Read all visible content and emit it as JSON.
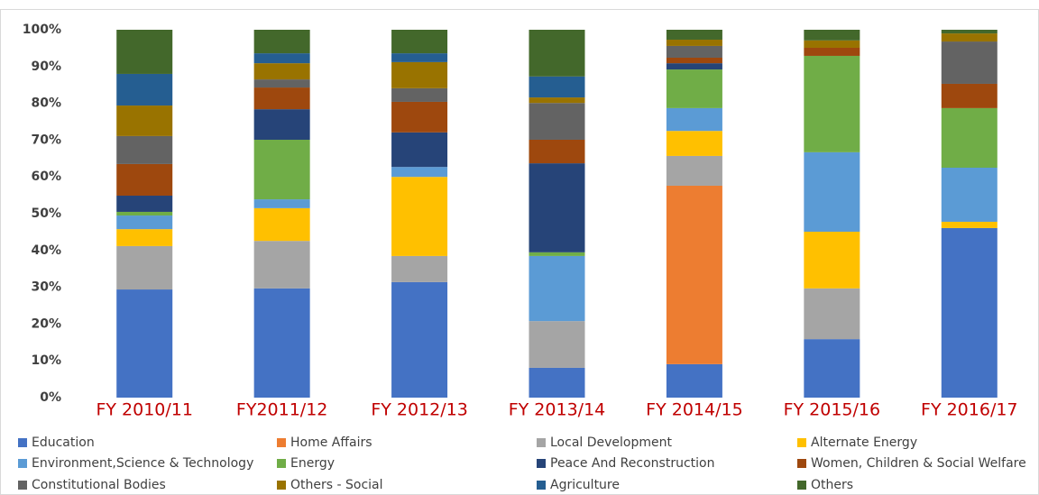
{
  "chart_data": {
    "type": "stacked_bar_100",
    "categories": [
      "FY 2010/11",
      "FY2011/12",
      "FY 2012/13",
      "FY 2013/14",
      "FY 2014/15",
      "FY 2015/16",
      "FY 2016/17"
    ],
    "series": [
      {
        "name": "Education",
        "color": "#4472c4",
        "values": [
          29.4,
          29.7,
          31.4,
          8.1,
          9.1,
          15.9,
          46.1
        ]
      },
      {
        "name": "Home Affairs",
        "color": "#ed7d31",
        "values": [
          0,
          0,
          0,
          0,
          48.5,
          0,
          0
        ]
      },
      {
        "name": "Local Development",
        "color": "#a5a5a5",
        "values": [
          11.8,
          12.9,
          7.1,
          12.7,
          8.1,
          13.8,
          0
        ]
      },
      {
        "name": "Alternate Energy",
        "color": "#ffc000",
        "values": [
          4.6,
          8.9,
          21.5,
          0,
          6.8,
          15.4,
          1.7
        ]
      },
      {
        "name": "Environment,Science & Technology",
        "color": "#5b9bd5",
        "values": [
          3.7,
          2.4,
          2.7,
          17.7,
          6.2,
          21.6,
          14.7
        ]
      },
      {
        "name": "Energy",
        "color": "#70ad47",
        "values": [
          1.0,
          16.2,
          0,
          1.0,
          10.5,
          26.2,
          16.2
        ]
      },
      {
        "name": "Peace And Reconstruction",
        "color": "#264478",
        "values": [
          4.4,
          8.3,
          9.4,
          24.2,
          1.7,
          0,
          0
        ]
      },
      {
        "name": "Women, Children & Social Welfare",
        "color": "#9e480e",
        "values": [
          8.6,
          5.9,
          8.3,
          6.4,
          1.5,
          2.2,
          6.6
        ]
      },
      {
        "name": "Constitutional Bodies",
        "color": "#636363",
        "values": [
          7.6,
          2.2,
          3.7,
          10.0,
          3.2,
          0,
          11.5
        ]
      },
      {
        "name": "Others - Social",
        "color": "#997300",
        "values": [
          8.3,
          4.4,
          7.1,
          1.5,
          1.7,
          2.0,
          2.2
        ]
      },
      {
        "name": "Agriculture",
        "color": "#255e91",
        "values": [
          8.6,
          2.7,
          2.4,
          5.7,
          0,
          0,
          0
        ]
      },
      {
        "name": "Others",
        "color": "#43682b",
        "values": [
          12.0,
          6.4,
          6.4,
          12.7,
          2.7,
          2.9,
          1.0
        ]
      }
    ],
    "ylim": [
      0,
      100
    ],
    "yticks": [
      {
        "value": 0,
        "label": "0%"
      },
      {
        "value": 10,
        "label": "10%"
      },
      {
        "value": 20,
        "label": "20%"
      },
      {
        "value": 30,
        "label": "30%"
      },
      {
        "value": 40,
        "label": "40%"
      },
      {
        "value": 50,
        "label": "50%"
      },
      {
        "value": 60,
        "label": "60%"
      },
      {
        "value": 70,
        "label": "70%"
      },
      {
        "value": 80,
        "label": "80%"
      },
      {
        "value": 90,
        "label": "90%"
      },
      {
        "value": 100,
        "label": "100%"
      }
    ],
    "grid": false,
    "legend": "bottom"
  }
}
